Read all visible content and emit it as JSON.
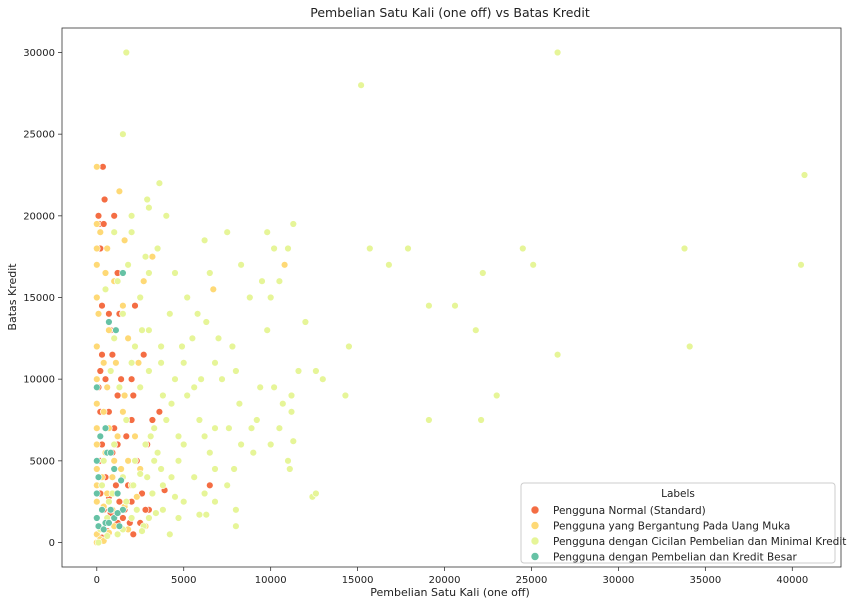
{
  "chart_data": {
    "type": "scatter",
    "title": "Pembelian Satu Kali (one off) vs Batas Kredit",
    "xlabel": "Pembelian Satu Kali (one off)",
    "ylabel": "Batas Kredit",
    "xlim": [
      -2000,
      42800
    ],
    "ylim": [
      -1500,
      31500
    ],
    "xticks": [
      0,
      5000,
      10000,
      15000,
      20000,
      25000,
      30000,
      35000,
      40000
    ],
    "yticks": [
      0,
      5000,
      10000,
      15000,
      20000,
      25000,
      30000
    ],
    "grid": false,
    "legend_title": "Labels",
    "legend_position": "lower-right",
    "series": [
      {
        "name": "Pengguna Normal (Standard)",
        "color": "#f46d43",
        "points": [
          [
            200,
            18000
          ],
          [
            350,
            23000
          ],
          [
            450,
            21000
          ],
          [
            100,
            20000
          ],
          [
            1000,
            20000
          ],
          [
            150,
            19500
          ],
          [
            400,
            19500
          ],
          [
            1200,
            16500
          ],
          [
            300,
            14500
          ],
          [
            2200,
            14500
          ],
          [
            800,
            13000
          ],
          [
            700,
            14000
          ],
          [
            1300,
            14000
          ],
          [
            300,
            11500
          ],
          [
            900,
            11500
          ],
          [
            2700,
            11500
          ],
          [
            200,
            10500
          ],
          [
            500,
            10000
          ],
          [
            1400,
            10000
          ],
          [
            2000,
            10000
          ],
          [
            100,
            9500
          ],
          [
            1200,
            9000
          ],
          [
            2100,
            9000
          ],
          [
            200,
            8000
          ],
          [
            700,
            8000
          ],
          [
            3600,
            8000
          ],
          [
            0,
            7000
          ],
          [
            1000,
            7000
          ],
          [
            2000,
            7500
          ],
          [
            3200,
            7500
          ],
          [
            300,
            6000
          ],
          [
            1200,
            6000
          ],
          [
            2900,
            6000
          ],
          [
            1700,
            6500
          ],
          [
            200,
            5000
          ],
          [
            900,
            5500
          ],
          [
            2300,
            5000
          ],
          [
            500,
            4000
          ],
          [
            1100,
            3500
          ],
          [
            1800,
            3500
          ],
          [
            2600,
            3000
          ],
          [
            3900,
            3200
          ],
          [
            6500,
            3500
          ],
          [
            200,
            3000
          ],
          [
            700,
            2800
          ],
          [
            1300,
            2500
          ],
          [
            2000,
            2500
          ],
          [
            3000,
            2000
          ],
          [
            400,
            2000
          ],
          [
            800,
            1800
          ],
          [
            1500,
            1500
          ],
          [
            2500,
            1200
          ],
          [
            100,
            1000
          ],
          [
            1200,
            1200
          ],
          [
            600,
            700
          ],
          [
            2100,
            500
          ],
          [
            300,
            300
          ],
          [
            1600,
            2000
          ],
          [
            2800,
            2000
          ],
          [
            1900,
            1200
          ]
        ]
      },
      {
        "name": "Pengguna yang Bergantung Pada Uang Muka",
        "color": "#fed976",
        "points": [
          [
            0,
            23000
          ],
          [
            1300,
            21500
          ],
          [
            0,
            19500
          ],
          [
            200,
            19000
          ],
          [
            0,
            18000
          ],
          [
            600,
            18000
          ],
          [
            1600,
            18500
          ],
          [
            3200,
            17500
          ],
          [
            10800,
            17000
          ],
          [
            0,
            17000
          ],
          [
            500,
            16500
          ],
          [
            1000,
            16000
          ],
          [
            2700,
            16000
          ],
          [
            6700,
            15500
          ],
          [
            0,
            15000
          ],
          [
            500,
            15500
          ],
          [
            1500,
            14500
          ],
          [
            100,
            14000
          ],
          [
            700,
            13000
          ],
          [
            1800,
            12500
          ],
          [
            0,
            12000
          ],
          [
            400,
            11000
          ],
          [
            1100,
            11000
          ],
          [
            2400,
            11000
          ],
          [
            0,
            10000
          ],
          [
            600,
            9500
          ],
          [
            1600,
            9000
          ],
          [
            0,
            8500
          ],
          [
            400,
            8000
          ],
          [
            1500,
            8000
          ],
          [
            0,
            7000
          ],
          [
            700,
            7000
          ],
          [
            1200,
            6500
          ],
          [
            2200,
            6500
          ],
          [
            0,
            6000
          ],
          [
            500,
            5500
          ],
          [
            1000,
            5000
          ],
          [
            1800,
            5000
          ],
          [
            0,
            4500
          ],
          [
            300,
            4000
          ],
          [
            900,
            4000
          ],
          [
            1400,
            4500
          ],
          [
            2500,
            4500
          ],
          [
            0,
            3500
          ],
          [
            600,
            3000
          ],
          [
            1100,
            3000
          ],
          [
            2000,
            3500
          ],
          [
            0,
            2500
          ],
          [
            400,
            2200
          ],
          [
            900,
            2000
          ],
          [
            1600,
            2200
          ],
          [
            2300,
            2800
          ],
          [
            0,
            1500
          ],
          [
            500,
            1200
          ],
          [
            1000,
            1000
          ],
          [
            1800,
            800
          ],
          [
            0,
            500
          ],
          [
            200,
            200
          ],
          [
            700,
            600
          ],
          [
            2800,
            1000
          ],
          [
            0,
            0
          ],
          [
            400,
            100
          ]
        ]
      },
      {
        "name": "Pengguna dengan Cicilan Pembelian dan Minimal Kredit",
        "color": "#e6f598",
        "points": [
          [
            1700,
            30000
          ],
          [
            26500,
            30000
          ],
          [
            15200,
            28000
          ],
          [
            1500,
            25000
          ],
          [
            40700,
            22500
          ],
          [
            3600,
            22000
          ],
          [
            2900,
            21000
          ],
          [
            11300,
            19500
          ],
          [
            3000,
            20500
          ],
          [
            4000,
            20000
          ],
          [
            2000,
            20000
          ],
          [
            7500,
            19000
          ],
          [
            9800,
            19000
          ],
          [
            6200,
            18500
          ],
          [
            10200,
            18000
          ],
          [
            11000,
            18000
          ],
          [
            15700,
            18000
          ],
          [
            17900,
            18000
          ],
          [
            24500,
            18000
          ],
          [
            33800,
            18000
          ],
          [
            16800,
            17000
          ],
          [
            25100,
            17000
          ],
          [
            40500,
            17000
          ],
          [
            22200,
            16500
          ],
          [
            6500,
            16500
          ],
          [
            4500,
            16500
          ],
          [
            3000,
            16500
          ],
          [
            8300,
            17000
          ],
          [
            9500,
            16000
          ],
          [
            10500,
            16000
          ],
          [
            5200,
            15000
          ],
          [
            8800,
            15000
          ],
          [
            10000,
            15000
          ],
          [
            19100,
            14500
          ],
          [
            20600,
            14500
          ],
          [
            4200,
            14000
          ],
          [
            6300,
            13500
          ],
          [
            12000,
            13500
          ],
          [
            9800,
            13000
          ],
          [
            21800,
            13000
          ],
          [
            2600,
            13000
          ],
          [
            5500,
            12500
          ],
          [
            7800,
            12000
          ],
          [
            14500,
            12000
          ],
          [
            26500,
            11500
          ],
          [
            34100,
            12000
          ],
          [
            3700,
            12000
          ],
          [
            5000,
            11000
          ],
          [
            6800,
            11000
          ],
          [
            8000,
            10500
          ],
          [
            11600,
            10500
          ],
          [
            12600,
            10500
          ],
          [
            13000,
            10000
          ],
          [
            3000,
            10500
          ],
          [
            4500,
            10000
          ],
          [
            6000,
            10000
          ],
          [
            7200,
            10000
          ],
          [
            9400,
            9500
          ],
          [
            10200,
            9500
          ],
          [
            11200,
            9000
          ],
          [
            14300,
            9000
          ],
          [
            23000,
            9000
          ],
          [
            3800,
            9000
          ],
          [
            5200,
            9000
          ],
          [
            8200,
            8500
          ],
          [
            10700,
            8500
          ],
          [
            9200,
            7500
          ],
          [
            11200,
            8000
          ],
          [
            19100,
            7500
          ],
          [
            22100,
            7500
          ],
          [
            4000,
            7500
          ],
          [
            5900,
            7500
          ],
          [
            6800,
            7000
          ],
          [
            7600,
            7000
          ],
          [
            8900,
            7000
          ],
          [
            10500,
            7000
          ],
          [
            3300,
            7000
          ],
          [
            4700,
            6500
          ],
          [
            6200,
            6500
          ],
          [
            8300,
            6000
          ],
          [
            10000,
            6000
          ],
          [
            11300,
            6200
          ],
          [
            2800,
            6000
          ],
          [
            3500,
            5500
          ],
          [
            5000,
            6000
          ],
          [
            6500,
            5500
          ],
          [
            9000,
            5500
          ],
          [
            11000,
            5000
          ],
          [
            2200,
            5000
          ],
          [
            3300,
            5000
          ],
          [
            4700,
            5000
          ],
          [
            6800,
            4500
          ],
          [
            7900,
            4500
          ],
          [
            11100,
            4500
          ],
          [
            3700,
            4500
          ],
          [
            4300,
            4000
          ],
          [
            5600,
            4000
          ],
          [
            7500,
            3500
          ],
          [
            2900,
            4000
          ],
          [
            3800,
            3500
          ],
          [
            6200,
            3000
          ],
          [
            12400,
            2800
          ],
          [
            12600,
            3000
          ],
          [
            2100,
            3500
          ],
          [
            3200,
            3000
          ],
          [
            4500,
            2800
          ],
          [
            5000,
            2500
          ],
          [
            6800,
            2500
          ],
          [
            8000,
            2000
          ],
          [
            3800,
            2000
          ],
          [
            4700,
            1500
          ],
          [
            5900,
            1700
          ],
          [
            6300,
            1700
          ],
          [
            8000,
            1000
          ],
          [
            3000,
            1500
          ],
          [
            2000,
            1500
          ],
          [
            2700,
            1000
          ],
          [
            4200,
            500
          ],
          [
            1500,
            800
          ],
          [
            1000,
            1500
          ],
          [
            700,
            2500
          ],
          [
            300,
            3500
          ],
          [
            1500,
            4000
          ],
          [
            2500,
            4200
          ],
          [
            1000,
            6000
          ],
          [
            1700,
            7500
          ],
          [
            2500,
            9500
          ],
          [
            2000,
            11000
          ],
          [
            1000,
            12500
          ],
          [
            2200,
            12000
          ],
          [
            3000,
            13000
          ],
          [
            1500,
            14000
          ],
          [
            2500,
            15000
          ],
          [
            1200,
            16000
          ],
          [
            1800,
            17000
          ],
          [
            2800,
            17500
          ],
          [
            3500,
            18000
          ],
          [
            1000,
            19000
          ],
          [
            2000,
            19000
          ],
          [
            500,
            15500
          ],
          [
            800,
            10500
          ],
          [
            1300,
            9500
          ],
          [
            400,
            5000
          ],
          [
            900,
            3000
          ],
          [
            1700,
            2500
          ],
          [
            2300,
            2000
          ],
          [
            600,
            1500
          ],
          [
            1200,
            500
          ],
          [
            200,
            800
          ],
          [
            3100,
            6500
          ],
          [
            4300,
            8500
          ],
          [
            5600,
            9500
          ],
          [
            3700,
            11000
          ],
          [
            4900,
            12000
          ],
          [
            5800,
            14000
          ],
          [
            7000,
            12500
          ],
          [
            600,
            400
          ],
          [
            2600,
            700
          ],
          [
            3400,
            1800
          ],
          [
            100,
            0
          ]
        ]
      },
      {
        "name": "Pengguna dengan Pembelian dan Kredit Besar",
        "color": "#66c2a5",
        "points": [
          [
            1500,
            16500
          ],
          [
            700,
            13500
          ],
          [
            1100,
            13000
          ],
          [
            0,
            9500
          ],
          [
            500,
            7000
          ],
          [
            200,
            6500
          ],
          [
            600,
            5500
          ],
          [
            800,
            5500
          ],
          [
            100,
            4000
          ],
          [
            1000,
            4500
          ],
          [
            0,
            3000
          ],
          [
            1200,
            3000
          ],
          [
            300,
            2000
          ],
          [
            800,
            2000
          ],
          [
            1500,
            2000
          ],
          [
            0,
            1500
          ],
          [
            500,
            1200
          ],
          [
            1000,
            1500
          ],
          [
            100,
            1000
          ],
          [
            1300,
            1000
          ],
          [
            700,
            1200
          ],
          [
            400,
            800
          ],
          [
            1200,
            1800
          ],
          [
            0,
            5000
          ],
          [
            1400,
            3800
          ]
        ]
      }
    ]
  }
}
